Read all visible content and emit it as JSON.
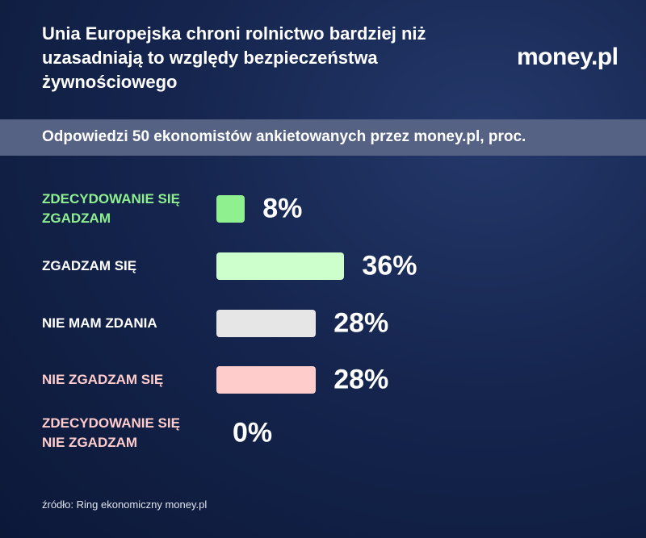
{
  "chart_data": {
    "type": "bar",
    "orientation": "horizontal",
    "title": "Unia Europejska chroni rolnictwo bardziej niż uzasadniają to względy bezpieczeństwa żywnościowego",
    "subtitle": "Odpowiedzi 50 ekonomistów ankietowanych przez money.pl, proc.",
    "logo": "money.pl",
    "source": "źródło: Ring ekonomiczny money.pl",
    "categories": [
      "ZDECYDOWANIE SIĘ ZGADZAM",
      "ZGADZAM SIĘ",
      "NIE MAM ZDANIA",
      "NIE ZGADZAM SIĘ",
      "ZDECYDOWANIE SIĘ NIE ZGADZAM"
    ],
    "values": [
      8,
      36,
      28,
      28,
      0
    ],
    "value_labels": [
      "8%",
      "36%",
      "28%",
      "28%",
      "0%"
    ],
    "colors": [
      "#8ef08e",
      "#ccffcc",
      "#e6e6e6",
      "#ffcccc",
      "#ffcccc"
    ],
    "category_colors": [
      "#8ef08e",
      "#ffffff",
      "#ffffff",
      "#ffcccc",
      "#ffcccc"
    ]
  }
}
